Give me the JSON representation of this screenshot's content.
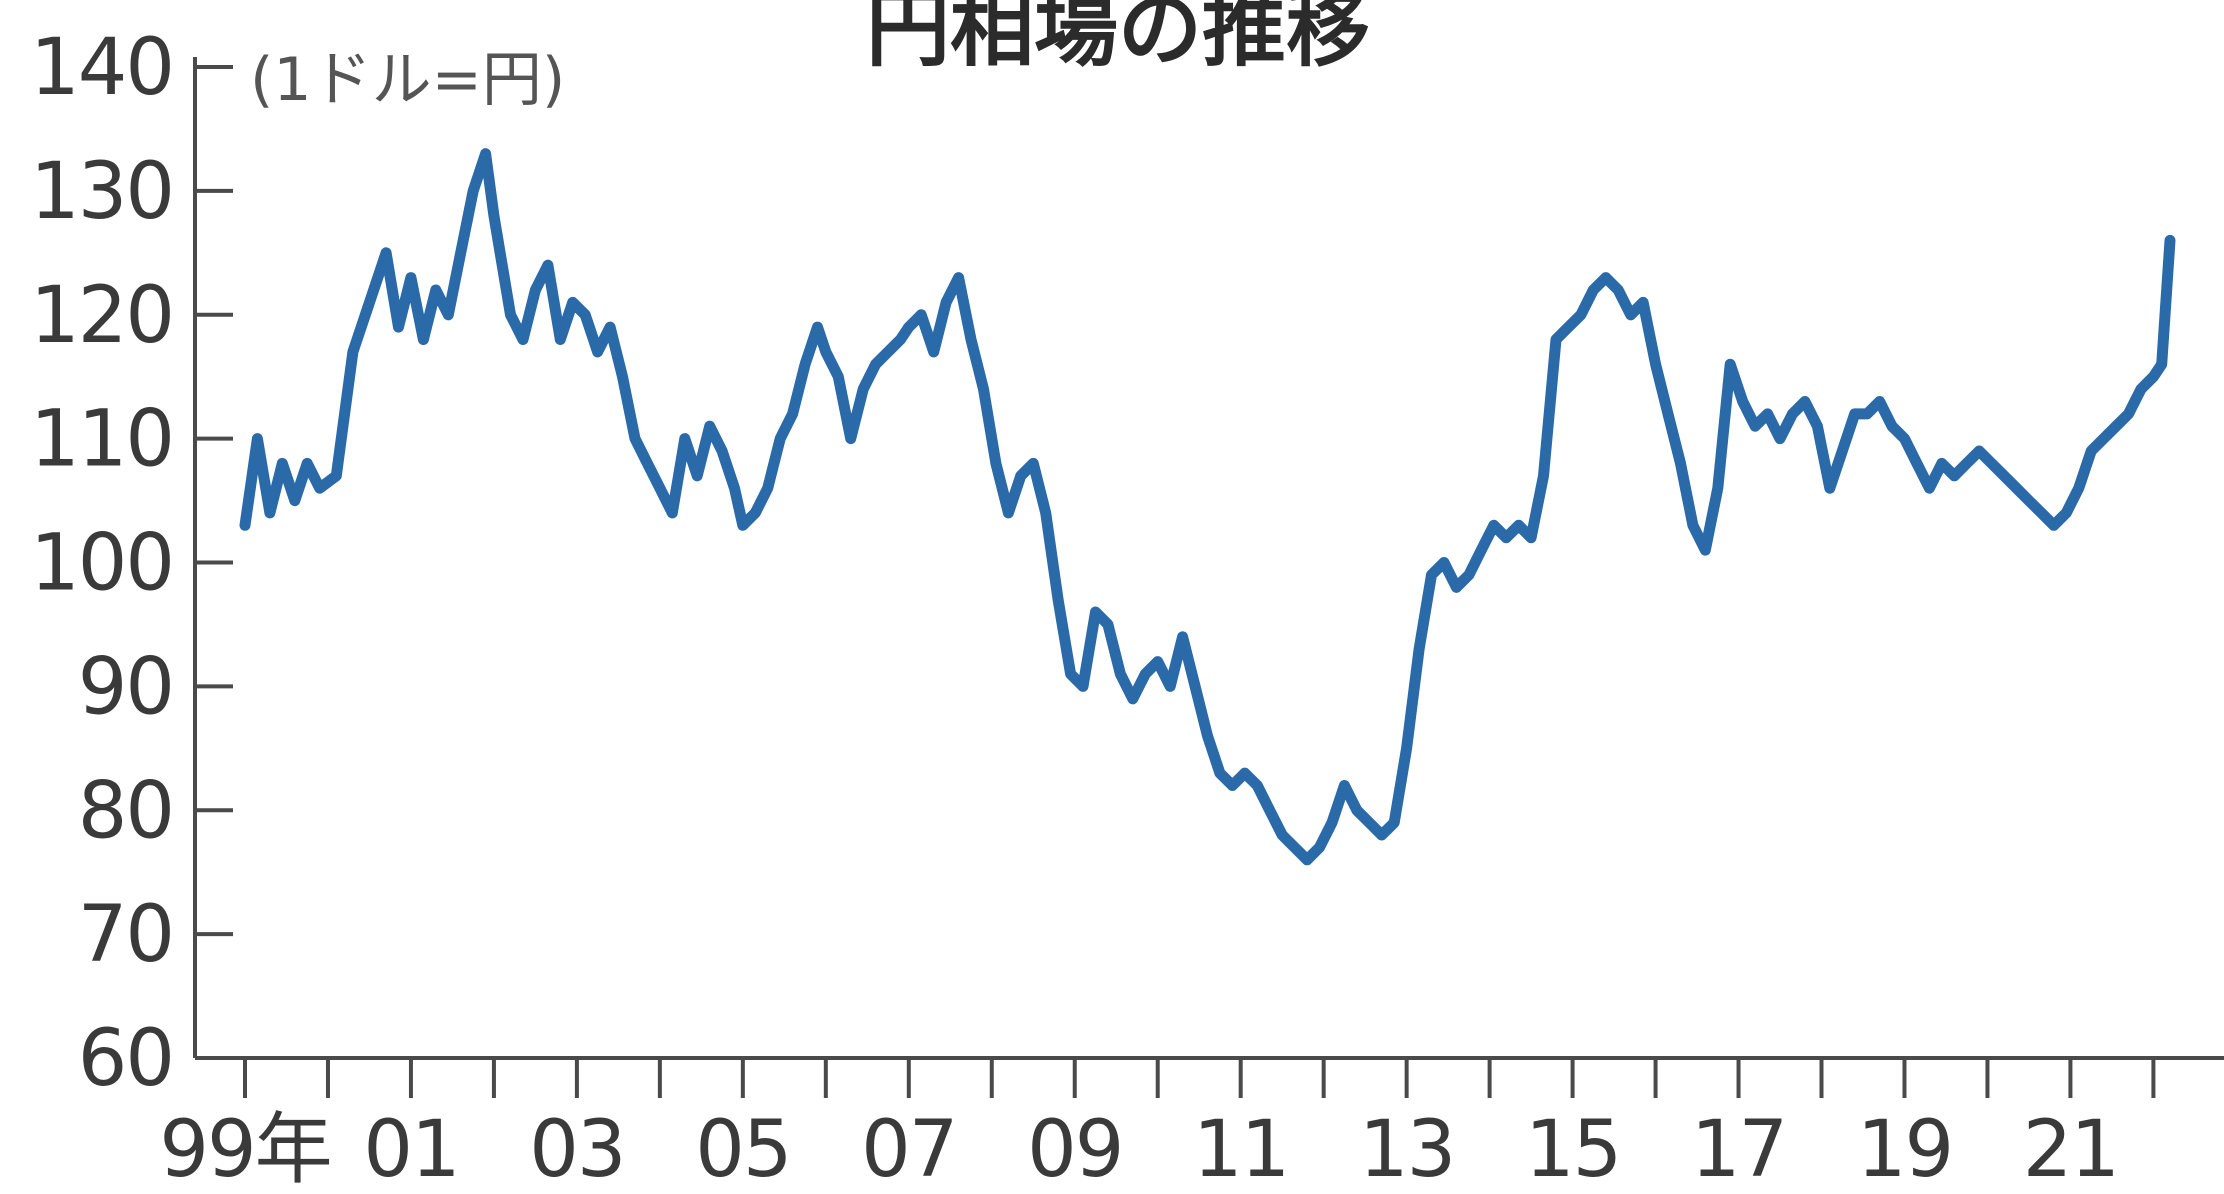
{
  "chart_data": {
    "type": "line",
    "title": "円相場の推移",
    "unit_label": "(1ドル=円)",
    "ylim": [
      60,
      140
    ],
    "y_ticks": [
      140,
      130,
      120,
      110,
      100,
      90,
      80,
      70,
      60
    ],
    "xlim": [
      1999,
      2022.2
    ],
    "x_tick_labels": [
      "99年",
      "01",
      "03",
      "05",
      "07",
      "09",
      "11",
      "13",
      "15",
      "17",
      "19",
      "21"
    ],
    "x_tick_years": [
      1999,
      2001,
      2003,
      2005,
      2007,
      2009,
      2011,
      2013,
      2015,
      2017,
      2019,
      2021
    ],
    "grid": false,
    "colors": {
      "line": "#2b6aa8",
      "axis": "#4a4a4a"
    },
    "series": [
      {
        "x": [
          1999.0,
          1999.15,
          1999.3,
          1999.45,
          1999.6,
          1999.75,
          1999.9,
          2000.1,
          2000.3,
          2000.5,
          2000.7,
          2000.85,
          2001.0,
          2001.15,
          2001.3,
          2001.45,
          2001.6,
          2001.75,
          2001.9,
          2002.0,
          2002.1,
          2002.2,
          2002.35,
          2002.5,
          2002.65,
          2002.8,
          2002.95,
          2003.1,
          2003.25,
          2003.4,
          2003.55,
          2003.7,
          2003.85,
          2004.0,
          2004.15,
          2004.3,
          2004.45,
          2004.6,
          2004.75,
          2004.9,
          2005.0,
          2005.15,
          2005.3,
          2005.45,
          2005.6,
          2005.75,
          2005.9,
          2006.0,
          2006.15,
          2006.3,
          2006.45,
          2006.6,
          2006.75,
          2006.9,
          2007.0,
          2007.15,
          2007.3,
          2007.45,
          2007.6,
          2007.75,
          2007.9,
          2008.05,
          2008.2,
          2008.35,
          2008.5,
          2008.65,
          2008.8,
          2008.95,
          2009.1,
          2009.25,
          2009.4,
          2009.55,
          2009.7,
          2009.85,
          2010.0,
          2010.15,
          2010.3,
          2010.45,
          2010.6,
          2010.75,
          2010.9,
          2011.05,
          2011.2,
          2011.35,
          2011.5,
          2011.65,
          2011.8,
          2011.95,
          2012.1,
          2012.25,
          2012.4,
          2012.55,
          2012.7,
          2012.85,
          2013.0,
          2013.15,
          2013.3,
          2013.45,
          2013.6,
          2013.75,
          2013.9,
          2014.05,
          2014.2,
          2014.35,
          2014.5,
          2014.65,
          2014.8,
          2014.95,
          2015.1,
          2015.25,
          2015.4,
          2015.55,
          2015.7,
          2015.85,
          2016.0,
          2016.15,
          2016.3,
          2016.45,
          2016.6,
          2016.75,
          2016.9,
          2017.05,
          2017.2,
          2017.35,
          2017.5,
          2017.65,
          2017.8,
          2017.95,
          2018.1,
          2018.25,
          2018.4,
          2018.55,
          2018.7,
          2018.85,
          2019.0,
          2019.15,
          2019.3,
          2019.45,
          2019.6,
          2019.75,
          2019.9,
          2020.05,
          2020.2,
          2020.35,
          2020.5,
          2020.65,
          2020.8,
          2020.95,
          2021.1,
          2021.25,
          2021.4,
          2021.55,
          2021.7,
          2021.85,
          2022.0,
          2022.1,
          2022.2
        ],
        "y": [
          103,
          110,
          104,
          108,
          105,
          108,
          106,
          107,
          117,
          121,
          125,
          119,
          123,
          118,
          122,
          120,
          125,
          130,
          133,
          128,
          124,
          120,
          118,
          122,
          124,
          118,
          121,
          120,
          117,
          119,
          115,
          110,
          108,
          106,
          104,
          110,
          107,
          111,
          109,
          106,
          103,
          104,
          106,
          110,
          112,
          116,
          119,
          117,
          115,
          110,
          114,
          116,
          117,
          118,
          119,
          120,
          117,
          121,
          123,
          118,
          114,
          108,
          104,
          107,
          108,
          104,
          97,
          91,
          90,
          96,
          95,
          91,
          89,
          91,
          92,
          90,
          94,
          90,
          86,
          83,
          82,
          83,
          82,
          80,
          78,
          77,
          76,
          77,
          79,
          82,
          80,
          79,
          78,
          79,
          85,
          93,
          99,
          100,
          98,
          99,
          101,
          103,
          102,
          103,
          102,
          107,
          118,
          119,
          120,
          122,
          123,
          122,
          120,
          121,
          116,
          112,
          108,
          103,
          101,
          106,
          116,
          113,
          111,
          112,
          110,
          112,
          113,
          111,
          106,
          109,
          112,
          112,
          113,
          111,
          110,
          108,
          106,
          108,
          107,
          108,
          109,
          108,
          107,
          106,
          105,
          104,
          103,
          104,
          106,
          109,
          110,
          111,
          112,
          114,
          115,
          116,
          126
        ]
      }
    ]
  }
}
